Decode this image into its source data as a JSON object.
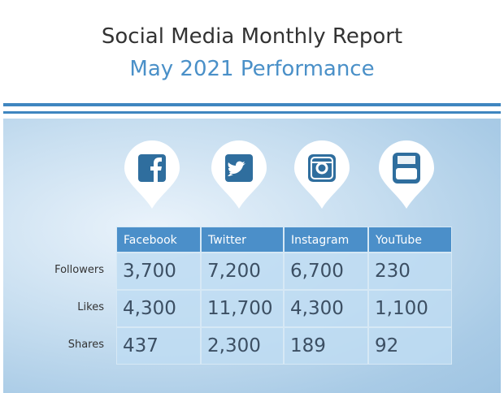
{
  "header": {
    "title": "Social Media Monthly Report",
    "subtitle": "May 2021 Performance"
  },
  "table": {
    "columns": [
      "Facebook",
      "Twitter",
      "Instagram",
      "YouTube"
    ],
    "rows": [
      {
        "label": "Followers",
        "values": [
          "3,700",
          "7,200",
          "6,700",
          "230"
        ]
      },
      {
        "label": "Likes",
        "values": [
          "4,300",
          "11,700",
          "4,300",
          "1,100"
        ]
      },
      {
        "label": "Shares",
        "values": [
          "437",
          "2,300",
          "189",
          "92"
        ]
      }
    ]
  }
}
